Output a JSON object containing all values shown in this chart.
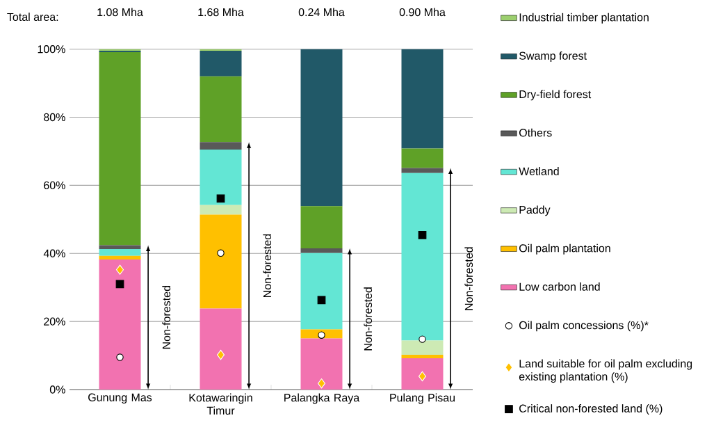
{
  "chart_data": {
    "type": "bar",
    "stacked": true,
    "categories": [
      "Gunung Mas",
      "Kotawaringin Timur",
      "Palangka Raya",
      "Pulang Pisau"
    ],
    "series": [
      {
        "name": "Low carbon land",
        "color": "#f272b0",
        "values": [
          38.2,
          23.8,
          15.0,
          9.2
        ]
      },
      {
        "name": "Oil palm plantation",
        "color": "#ffc000",
        "values": [
          1.1,
          27.6,
          2.7,
          1.0
        ]
      },
      {
        "name": "Paddy",
        "color": "#cdeab4",
        "values": [
          0,
          2.8,
          0,
          4.2
        ]
      },
      {
        "name": "Wetland",
        "color": "#63e6d4",
        "values": [
          2.0,
          16.3,
          22.4,
          49.2
        ]
      },
      {
        "name": "Others",
        "color": "#595959",
        "values": [
          1.1,
          2.2,
          1.4,
          1.5
        ]
      },
      {
        "name": "Dry-field forest",
        "color": "#5fa127",
        "values": [
          56.7,
          19.3,
          12.4,
          5.7
        ]
      },
      {
        "name": "Swamp forest",
        "color": "#215968",
        "values": [
          0.4,
          7.5,
          46.1,
          29.2
        ]
      },
      {
        "name": "Industrial timber plantation",
        "color": "#9ccf6e",
        "values": [
          0.5,
          0.5,
          0,
          0
        ]
      },
      {
        "name": "Oil palm concessions (%)*",
        "type": "scatter",
        "marker": "circle",
        "color": "#ffffff",
        "x": [
          "Gunung Mas",
          "Kotawaringin Timur",
          "Palangka Raya",
          "Pulang Pisau"
        ],
        "values": [
          9.5,
          40.1,
          16.0,
          14.8
        ]
      },
      {
        "name": "Land suitable for oil palm excluding existing plantation (%)",
        "type": "scatter",
        "marker": "diamond",
        "color": "#ffc000",
        "x": [
          "Gunung Mas",
          "Kotawaringin Timur",
          "Palangka Raya",
          "Pulang Pisau"
        ],
        "values": [
          35.2,
          10.2,
          1.8,
          3.9
        ]
      },
      {
        "name": "Critical non-forested land (%)",
        "type": "scatter",
        "marker": "square",
        "color": "#000000",
        "x": [
          "Gunung Mas",
          "Kotawaringin Timur",
          "Palangka Raya",
          "Pulang Pisau"
        ],
        "values": [
          31.0,
          56.1,
          26.3,
          45.4
        ]
      }
    ],
    "ylim": [
      0,
      100
    ],
    "yticks": [
      {
        "value": 0,
        "label": "0%"
      },
      {
        "value": 20,
        "label": "20%"
      },
      {
        "value": 40,
        "label": "40%"
      },
      {
        "value": 60,
        "label": "60%"
      },
      {
        "value": 80,
        "label": "80%"
      },
      {
        "value": 100,
        "label": "100%"
      }
    ],
    "grid": "y",
    "legend": "right",
    "annotations": [
      "Total area:",
      "1.08 Mha",
      "1.68 Mha",
      "0.24 Mha",
      "0.90 Mha",
      "Non-forested",
      "Non-forested",
      "Non-forested",
      "Non-forested"
    ]
  }
}
